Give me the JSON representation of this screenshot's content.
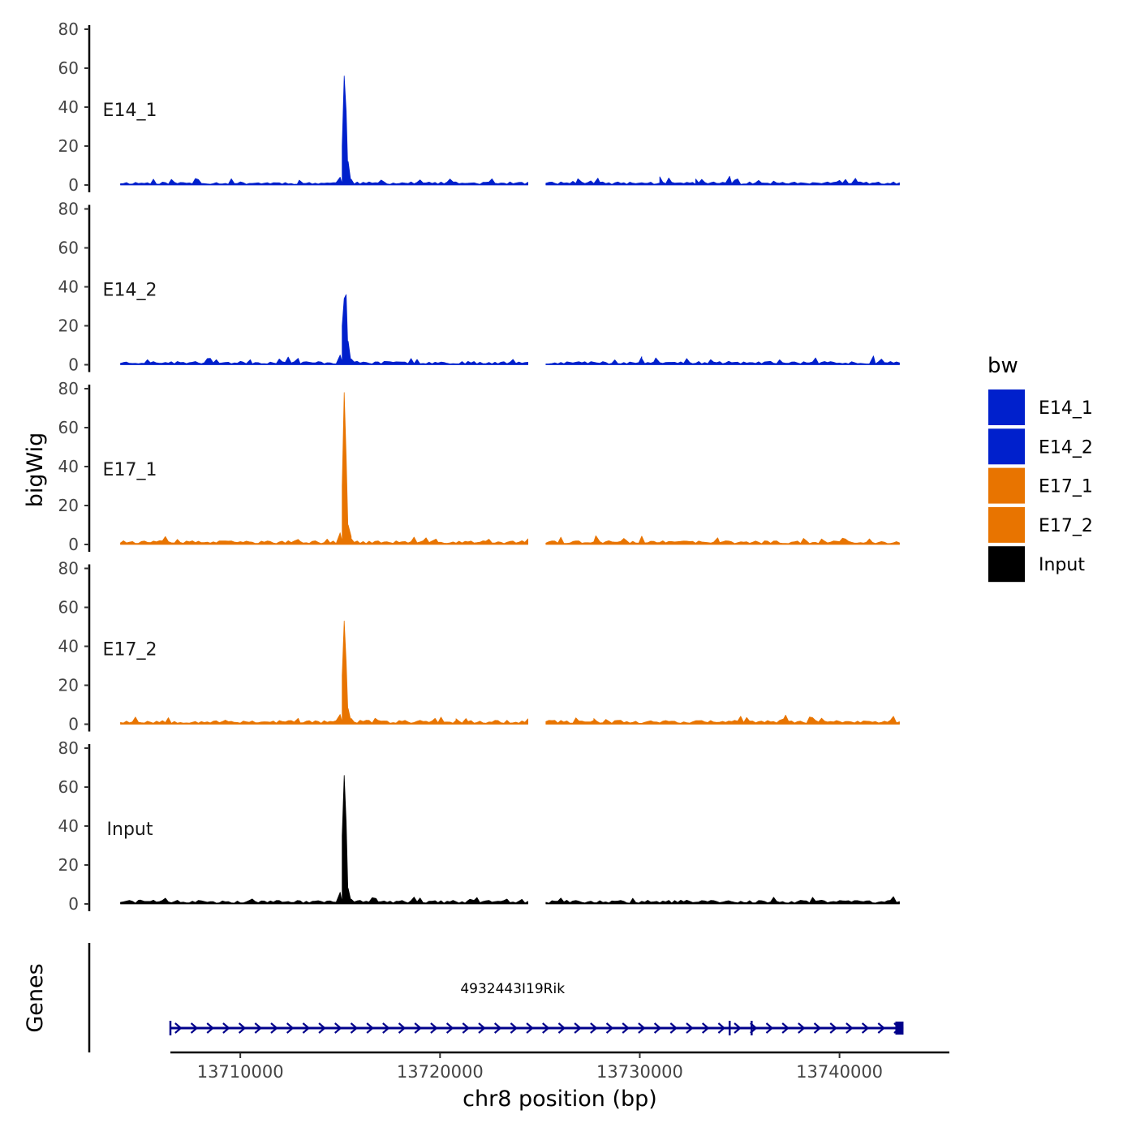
{
  "chart_data": {
    "type": "area",
    "title": "",
    "ylabel": "bigWig",
    "xlabel": "chr8 position (bp)",
    "genes_label": "Genes",
    "xlim": [
      13706500,
      13745500
    ],
    "ylim": [
      0,
      80
    ],
    "x_ticks": [
      13710000,
      13720000,
      13730000,
      13740000
    ],
    "x_tick_labels": [
      "13710000",
      "13720000",
      "13730000",
      "13740000"
    ],
    "y_ticks": [
      0,
      20,
      40,
      60,
      80
    ],
    "y_tick_labels": [
      "0",
      "20",
      "40",
      "60",
      "80"
    ],
    "data_range": [
      13704000,
      13743000
    ],
    "gap": [
      13724400,
      13725300
    ],
    "legend": {
      "title": "bw",
      "position": "right",
      "entries": [
        {
          "label": "E14_1",
          "color": "#0020CC"
        },
        {
          "label": "E14_2",
          "color": "#0020CC"
        },
        {
          "label": "E17_1",
          "color": "#E87400"
        },
        {
          "label": "E17_2",
          "color": "#E87400"
        },
        {
          "label": "Input",
          "color": "#000000"
        }
      ]
    },
    "series": [
      {
        "name": "E14_1",
        "color": "#0020CC",
        "baseline": 1.0,
        "seed": 11,
        "peaks": [
          {
            "x": 13715000,
            "y": 4
          },
          {
            "x": 13715100,
            "y": 20
          },
          {
            "x": 13715200,
            "y": 56
          },
          {
            "x": 13715300,
            "y": 38
          },
          {
            "x": 13715400,
            "y": 12
          },
          {
            "x": 13715550,
            "y": 3
          },
          {
            "x": 13712950,
            "y": 2.5
          },
          {
            "x": 13726900,
            "y": 3.2
          },
          {
            "x": 13727900,
            "y": 3.5
          },
          {
            "x": 13731000,
            "y": 4.2
          },
          {
            "x": 13732800,
            "y": 3.1
          },
          {
            "x": 13734500,
            "y": 4.5
          },
          {
            "x": 13740800,
            "y": 3.4
          }
        ]
      },
      {
        "name": "E14_2",
        "color": "#0020CC",
        "baseline": 1.1,
        "seed": 23,
        "peaks": [
          {
            "x": 13715000,
            "y": 5
          },
          {
            "x": 13715100,
            "y": 20
          },
          {
            "x": 13715200,
            "y": 34
          },
          {
            "x": 13715300,
            "y": 36
          },
          {
            "x": 13715400,
            "y": 12
          },
          {
            "x": 13715550,
            "y": 3
          },
          {
            "x": 13712900,
            "y": 3.3
          },
          {
            "x": 13710500,
            "y": 2.6
          },
          {
            "x": 13730100,
            "y": 3.2
          },
          {
            "x": 13730800,
            "y": 3.5
          },
          {
            "x": 13741700,
            "y": 4.5
          }
        ]
      },
      {
        "name": "E17_1",
        "color": "#E87400",
        "baseline": 1.2,
        "seed": 37,
        "peaks": [
          {
            "x": 13715000,
            "y": 6
          },
          {
            "x": 13715100,
            "y": 30
          },
          {
            "x": 13715200,
            "y": 78
          },
          {
            "x": 13715300,
            "y": 45
          },
          {
            "x": 13715400,
            "y": 10
          },
          {
            "x": 13715550,
            "y": 3
          },
          {
            "x": 13712900,
            "y": 2.6
          },
          {
            "x": 13719800,
            "y": 2.8
          },
          {
            "x": 13727800,
            "y": 4.5
          },
          {
            "x": 13733900,
            "y": 3.4
          }
        ]
      },
      {
        "name": "E17_2",
        "color": "#E87400",
        "baseline": 1.3,
        "seed": 53,
        "peaks": [
          {
            "x": 13715000,
            "y": 5
          },
          {
            "x": 13715100,
            "y": 25
          },
          {
            "x": 13715200,
            "y": 53
          },
          {
            "x": 13715300,
            "y": 32
          },
          {
            "x": 13715400,
            "y": 8
          },
          {
            "x": 13715550,
            "y": 3
          },
          {
            "x": 13712900,
            "y": 3.0
          },
          {
            "x": 13720800,
            "y": 2.8
          },
          {
            "x": 13721300,
            "y": 2.9
          },
          {
            "x": 13727700,
            "y": 2.9
          },
          {
            "x": 13737200,
            "y": 2.7
          }
        ]
      },
      {
        "name": "Input",
        "color": "#000000",
        "baseline": 1.2,
        "seed": 71,
        "peaks": [
          {
            "x": 13715000,
            "y": 6
          },
          {
            "x": 13715100,
            "y": 35
          },
          {
            "x": 13715200,
            "y": 66
          },
          {
            "x": 13715300,
            "y": 42
          },
          {
            "x": 13715400,
            "y": 8
          },
          {
            "x": 13715550,
            "y": 2.5
          },
          {
            "x": 13716800,
            "y": 2.8
          },
          {
            "x": 13705000,
            "y": 2.0
          },
          {
            "x": 13721500,
            "y": 2.4
          }
        ]
      }
    ],
    "gene_track": {
      "name": "4932443I19Rik",
      "strand": "+",
      "color": "#00008B",
      "start": 13706500,
      "end": 13743200,
      "exons": [
        13706500,
        13734500,
        13735600,
        13743000
      ]
    }
  }
}
